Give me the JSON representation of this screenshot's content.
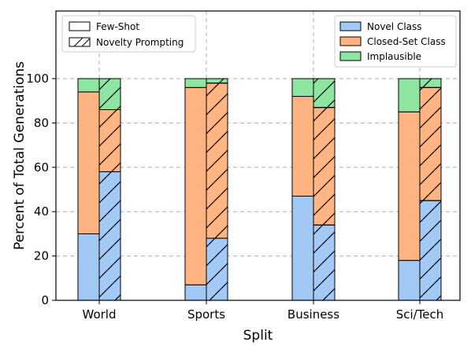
{
  "chart_data": {
    "type": "bar",
    "stacked": true,
    "categories": [
      "World",
      "Sports",
      "Business",
      "Sci/Tech"
    ],
    "xlabel": "Split",
    "ylabel": "Percent of Total Generations",
    "ylim": [
      0,
      100
    ],
    "yticks": [
      0,
      20,
      40,
      60,
      80,
      100
    ],
    "grid": true,
    "series": [
      {
        "name": "Novel Class",
        "color": "#a1c9f4"
      },
      {
        "name": "Closed-Set Class",
        "color": "#ffb482"
      },
      {
        "name": "Implausible",
        "color": "#8de5a1"
      }
    ],
    "groups": [
      {
        "name": "Few-Shot",
        "hatch": "none"
      },
      {
        "name": "Novelty Prompting",
        "hatch": "diagonal"
      }
    ],
    "data": {
      "Few-Shot": {
        "Novel Class": [
          30,
          7,
          47,
          18
        ],
        "Closed-Set Class": [
          64,
          89,
          45,
          67
        ],
        "Implausible": [
          6,
          4,
          8,
          15
        ]
      },
      "Novelty Prompting": {
        "Novel Class": [
          58,
          28,
          34,
          45
        ],
        "Closed-Set Class": [
          28,
          70,
          53,
          51
        ],
        "Implausible": [
          14,
          2,
          13,
          4
        ]
      }
    },
    "legends": {
      "hatch_legend_position": "top-left",
      "color_legend_position": "top-right"
    }
  }
}
